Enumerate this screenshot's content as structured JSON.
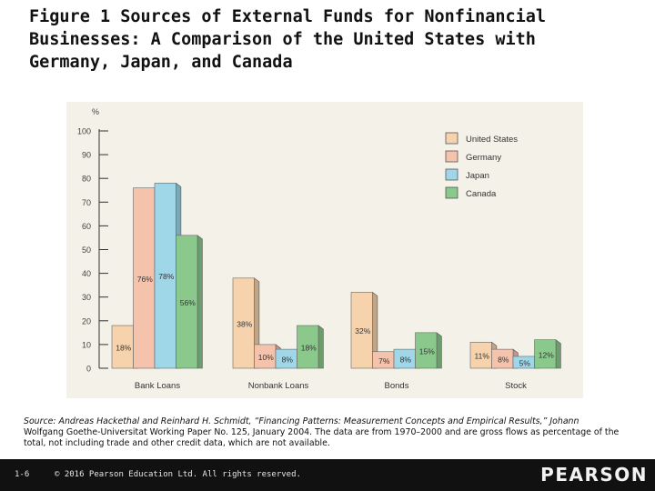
{
  "slide": {
    "title": "Figure 1 Sources of External Funds for Nonfinancial\nBusinesses: A Comparison of the United States with\nGermany, Japan, and Canada",
    "source_lead": "Source: Andreas Hackethal and Reinhard H. Schmidt, “Financing Patterns: Measurement Concepts and Empirical Results,” Johann",
    "source_rest": "Wolfgang Goethe-Universitat Working Paper No. 125, January 2004. The data are from 1970–2000 and are gross flows as percentage of the total, not including trade and other credit data, which are not available.",
    "slide_number": "1-6",
    "copyright": "© 2016 Pearson Education Ltd. All rights reserved.",
    "brand": "PEARSON"
  },
  "chart_data": {
    "type": "bar",
    "ylabel": "%",
    "ylim": [
      0,
      100
    ],
    "yticks": [
      0,
      10,
      20,
      30,
      40,
      50,
      60,
      70,
      80,
      90,
      100
    ],
    "grid": false,
    "legend_position": "top-right",
    "categories": [
      "Bank Loans",
      "Nonbank Loans",
      "Bonds",
      "Stock"
    ],
    "series": [
      {
        "name": "United States",
        "color": "#f6d3ac",
        "values": [
          18,
          38,
          32,
          11
        ],
        "labels": [
          "18%",
          "38%",
          "32%",
          "11%"
        ]
      },
      {
        "name": "Germany",
        "color": "#f5c2ab",
        "values": [
          76,
          10,
          7,
          8
        ],
        "labels": [
          "76%",
          "10%",
          "7%",
          "8%"
        ]
      },
      {
        "name": "Japan",
        "color": "#9fd6e8",
        "values": [
          78,
          8,
          8,
          5
        ],
        "labels": [
          "78%",
          "8%",
          "8%",
          "5%"
        ]
      },
      {
        "name": "Canada",
        "color": "#8ac98b",
        "values": [
          56,
          18,
          15,
          12
        ],
        "labels": [
          "56%",
          "18%",
          "15%",
          "12%"
        ]
      }
    ]
  }
}
